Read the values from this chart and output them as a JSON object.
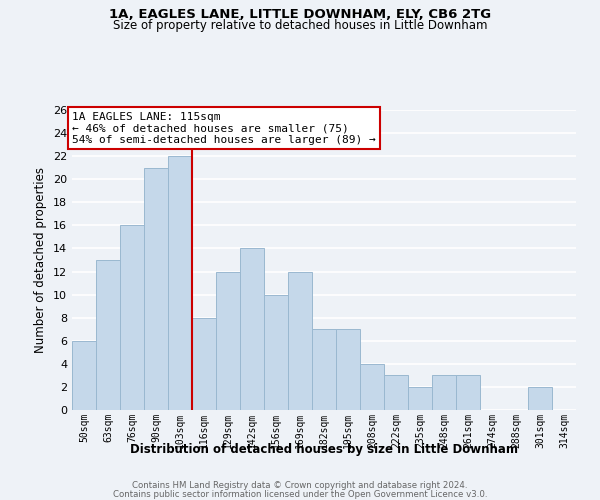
{
  "title1": "1A, EAGLES LANE, LITTLE DOWNHAM, ELY, CB6 2TG",
  "title2": "Size of property relative to detached houses in Little Downham",
  "xlabel": "Distribution of detached houses by size in Little Downham",
  "ylabel": "Number of detached properties",
  "bar_color": "#c5d8ea",
  "bar_edge_color": "#9ab8d0",
  "bin_labels": [
    "50sqm",
    "63sqm",
    "76sqm",
    "90sqm",
    "103sqm",
    "116sqm",
    "129sqm",
    "142sqm",
    "156sqm",
    "169sqm",
    "182sqm",
    "195sqm",
    "208sqm",
    "222sqm",
    "235sqm",
    "248sqm",
    "261sqm",
    "274sqm",
    "288sqm",
    "301sqm",
    "314sqm"
  ],
  "bar_heights": [
    6,
    13,
    16,
    21,
    22,
    8,
    12,
    14,
    10,
    12,
    7,
    7,
    4,
    3,
    2,
    3,
    3,
    0,
    0,
    2,
    0
  ],
  "vline_x": 4.5,
  "vline_color": "#cc0000",
  "ylim": [
    0,
    26
  ],
  "yticks": [
    0,
    2,
    4,
    6,
    8,
    10,
    12,
    14,
    16,
    18,
    20,
    22,
    24,
    26
  ],
  "annotation_title": "1A EAGLES LANE: 115sqm",
  "annotation_line1": "← 46% of detached houses are smaller (75)",
  "annotation_line2": "54% of semi-detached houses are larger (89) →",
  "annotation_box_color": "#ffffff",
  "annotation_box_edge": "#cc0000",
  "footer1": "Contains HM Land Registry data © Crown copyright and database right 2024.",
  "footer2": "Contains public sector information licensed under the Open Government Licence v3.0.",
  "background_color": "#eef2f7",
  "grid_color": "#ffffff"
}
